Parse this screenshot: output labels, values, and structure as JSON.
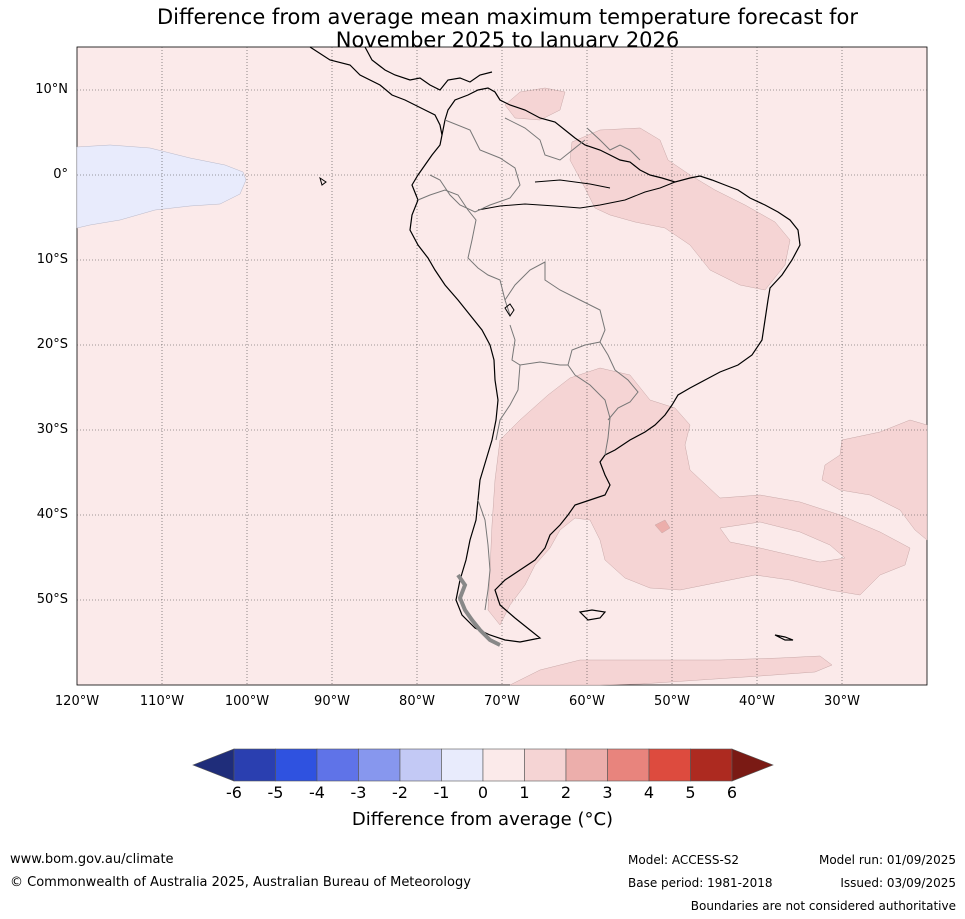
{
  "title_line1": "Difference from average mean maximum temperature forecast for",
  "title_line2": "November 2025 to January 2026",
  "lat_labels": [
    "10°N",
    "0°",
    "10°S",
    "20°S",
    "30°S",
    "40°S",
    "50°S"
  ],
  "lon_labels": [
    "120°W",
    "110°W",
    "100°W",
    "90°W",
    "80°W",
    "70°W",
    "60°W",
    "50°W",
    "40°W",
    "30°W"
  ],
  "colorbar": {
    "ticks": [
      "-6",
      "-5",
      "-4",
      "-3",
      "-2",
      "-1",
      "0",
      "1",
      "2",
      "3",
      "4",
      "5",
      "6"
    ],
    "colors": [
      "#1f2d7a",
      "#2a3fb0",
      "#2f52e0",
      "#5f73e8",
      "#8797ee",
      "#c3c9f5",
      "#e8ebfc",
      "#fbeaea",
      "#f5d4d4",
      "#ecaeab",
      "#e8847d",
      "#dd4b3e",
      "#ad2a20",
      "#7a1a14"
    ],
    "label": "Difference from average (°C)"
  },
  "footer": {
    "url": "www.bom.gov.au/climate",
    "copyright": "© Commonwealth of Australia 2025, Australian Bureau of Meteorology",
    "model": "Model: ACCESS-S2",
    "base_period": "Base period: 1981-2018",
    "model_run": "Model run: 01/09/2025",
    "issued": "Issued: 03/09/2025",
    "disclaimer": "Boundaries are not considered authoritative"
  }
}
